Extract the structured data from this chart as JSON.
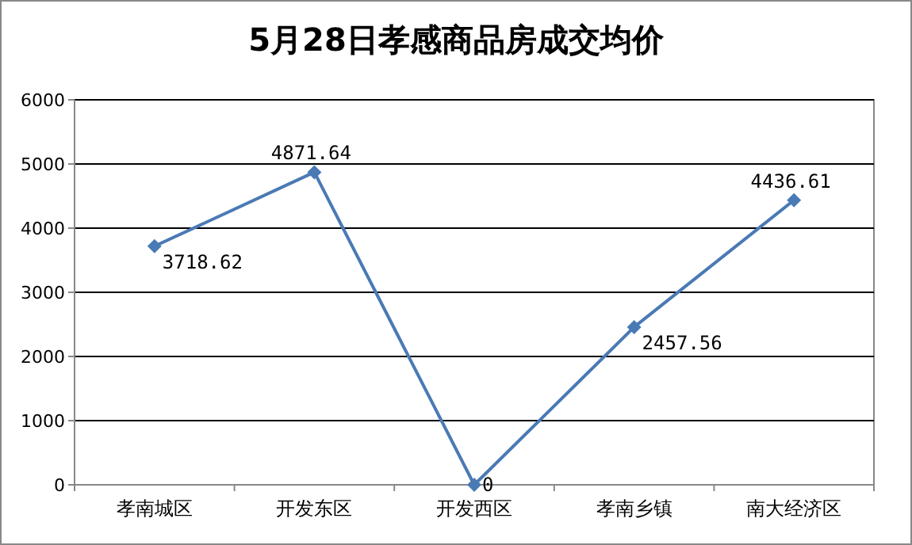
{
  "chart_data": {
    "type": "line",
    "title": "5月28日孝感商品房成交均价",
    "categories": [
      "孝南城区",
      "开发东区",
      "开发西区",
      "孝南乡镇",
      "南大经济区"
    ],
    "series": [
      {
        "color": "#4a7ab5",
        "values": [
          3718.62,
          4871.64,
          0,
          2457.56,
          4436.61
        ]
      }
    ],
    "ylim": [
      0,
      6000
    ],
    "yticks": [
      0,
      1000,
      2000,
      3000,
      4000,
      5000,
      6000
    ],
    "grid": "y",
    "marker": "diamond",
    "line_style": "solid",
    "data_labels": true
  }
}
